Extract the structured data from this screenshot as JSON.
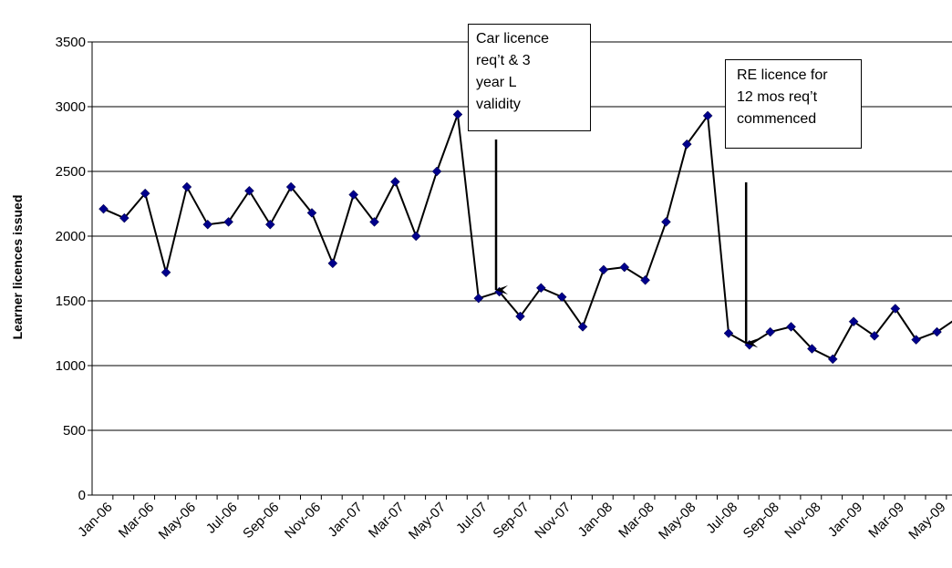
{
  "chart_data": {
    "type": "line",
    "title": "",
    "xlabel": "",
    "ylabel": "Learner licences issued",
    "ylim": [
      0,
      3500
    ],
    "yticks": [
      0,
      500,
      1000,
      1500,
      2000,
      2500,
      3000,
      3500
    ],
    "grid": "horizontal",
    "x_tick_labels": [
      "Jan-06",
      "Mar-06",
      "May-06",
      "Jul-06",
      "Sep-06",
      "Nov-06",
      "Jan-07",
      "Mar-07",
      "May-07",
      "Jul-07",
      "Sep-07",
      "Nov-07",
      "Jan-08",
      "Mar-08",
      "May-08",
      "Jul-08",
      "Sep-08",
      "Nov-08",
      "Jan-09",
      "Mar-09",
      "May-09"
    ],
    "x": [
      "Jan-06",
      "Feb-06",
      "Mar-06",
      "Apr-06",
      "May-06",
      "Jun-06",
      "Jul-06",
      "Aug-06",
      "Sep-06",
      "Oct-06",
      "Nov-06",
      "Dec-06",
      "Jan-07",
      "Feb-07",
      "Mar-07",
      "Apr-07",
      "May-07",
      "Jun-07",
      "Jul-07",
      "Aug-07",
      "Sep-07",
      "Oct-07",
      "Nov-07",
      "Dec-07",
      "Jan-08",
      "Feb-08",
      "Mar-08",
      "Apr-08",
      "May-08",
      "Jun-08",
      "Jul-08",
      "Aug-08",
      "Sep-08",
      "Oct-08",
      "Nov-08",
      "Dec-08",
      "Jan-09",
      "Feb-09",
      "Mar-09",
      "Apr-09",
      "May-09",
      "Jun-09"
    ],
    "series": [
      {
        "color": "#00008B",
        "line_color": "#000000",
        "marker": "diamond",
        "values": [
          2210,
          2140,
          2330,
          1720,
          2380,
          2090,
          2110,
          2350,
          2090,
          2380,
          2180,
          1790,
          2320,
          2110,
          2420,
          2000,
          2500,
          2940,
          1520,
          1570,
          1380,
          1600,
          1530,
          1300,
          1740,
          1760,
          1660,
          2110,
          2710,
          2930,
          1250,
          1160,
          1260,
          1300,
          1130,
          1050,
          1340,
          1230,
          1440,
          1200,
          1260,
          1370
        ]
      }
    ],
    "annotations": [
      {
        "text": "Car licence\nreq’t & 3\nyear L\nvalidity",
        "arrow_to": "Aug-07"
      },
      {
        "text": "RE licence for\n12 mos req’t\ncommenced",
        "arrow_to": "Aug-08"
      }
    ]
  }
}
